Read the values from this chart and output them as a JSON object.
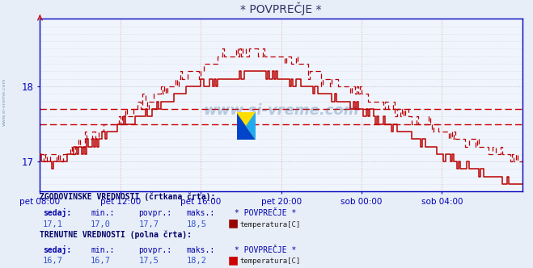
{
  "title": "* POVPREČJE *",
  "bg_color": "#e8eef8",
  "plot_bg_color": "#f0f4fc",
  "grid_color_v": "#e8a0a0",
  "grid_color_h": "#c8d0e0",
  "axis_color": "#0000bb",
  "line_color": "#bb0000",
  "x_labels": [
    "pet 08:00",
    "pet 12:00",
    "pet 16:00",
    "pet 20:00",
    "sob 00:00",
    "sob 04:00"
  ],
  "x_ticks_idx": [
    0,
    48,
    96,
    144,
    192,
    240
  ],
  "ylim": [
    16.6,
    18.9
  ],
  "yticks": [
    17,
    18
  ],
  "hlines": [
    17.7,
    17.5
  ],
  "hline_color": "#cc0000",
  "n_points": 289,
  "watermark": "www.si-vreme.com",
  "legend": {
    "hist_label": "ZGODOVINSKE VREDNOSTI (črtkana črta):",
    "curr_label": "TRENUTNE VREDNOSTI (polna črta):",
    "headers": [
      "sedaj:",
      "min.:",
      "povpr.:",
      "maks.:",
      "* POVPREČJE *"
    ],
    "hist_values": [
      "17,1",
      "17,0",
      "17,7",
      "18,5"
    ],
    "curr_values": [
      "16,7",
      "16,7",
      "17,5",
      "18,2"
    ],
    "series_name": "temperatura[C]",
    "color_hist": "#990000",
    "color_curr": "#cc0000"
  }
}
